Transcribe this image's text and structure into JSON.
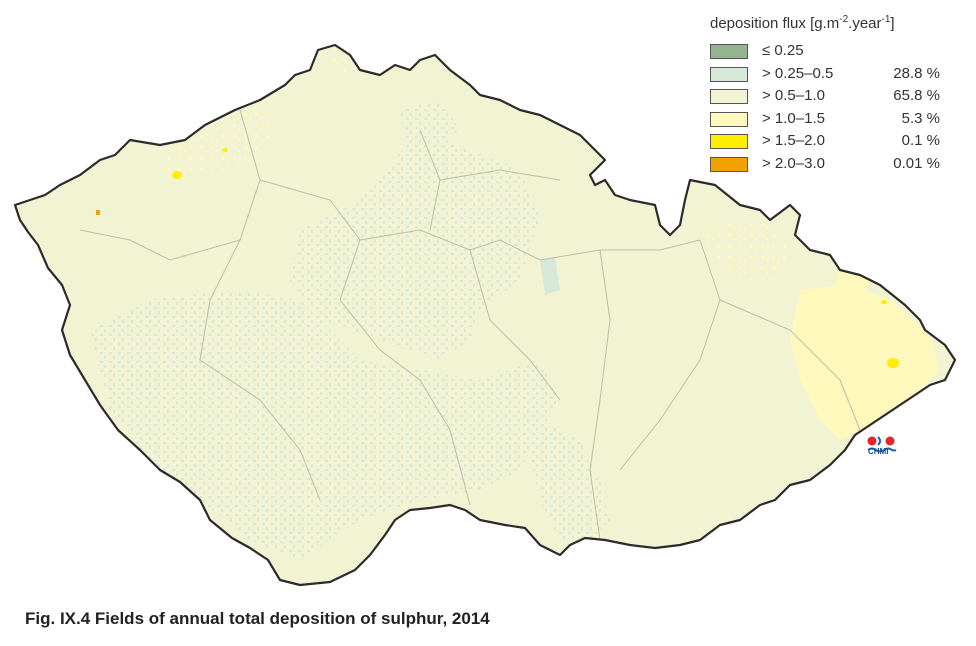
{
  "legend": {
    "title_text": "deposition flux [g.m",
    "title_exp1": "-2",
    "title_mid": ".year",
    "title_exp2": "-1",
    "title_end": "]",
    "items": [
      {
        "label": "≤ 0.25",
        "percent": "",
        "color": "#93b48f"
      },
      {
        "label": "> 0.25–0.5",
        "percent": "28.8 %",
        "color": "#d6e8d8"
      },
      {
        "label": "> 0.5–1.0",
        "percent": "65.8 %",
        "color": "#f1f3d2"
      },
      {
        "label": "> 1.0–1.5",
        "percent": "5.3 %",
        "color": "#fff8bd"
      },
      {
        "label": "> 1.5–2.0",
        "percent": "0.1 %",
        "color": "#ffee00"
      },
      {
        "label": "> 2.0–3.0",
        "percent": "0.01 %",
        "color": "#f2a100"
      }
    ]
  },
  "logo": {
    "text": "CHMI",
    "dot_color": "#e0252b",
    "wave_color": "#1a5fb4"
  },
  "caption": "Fig. IX.4  Fields of annual total deposition of sulphur, 2014"
}
